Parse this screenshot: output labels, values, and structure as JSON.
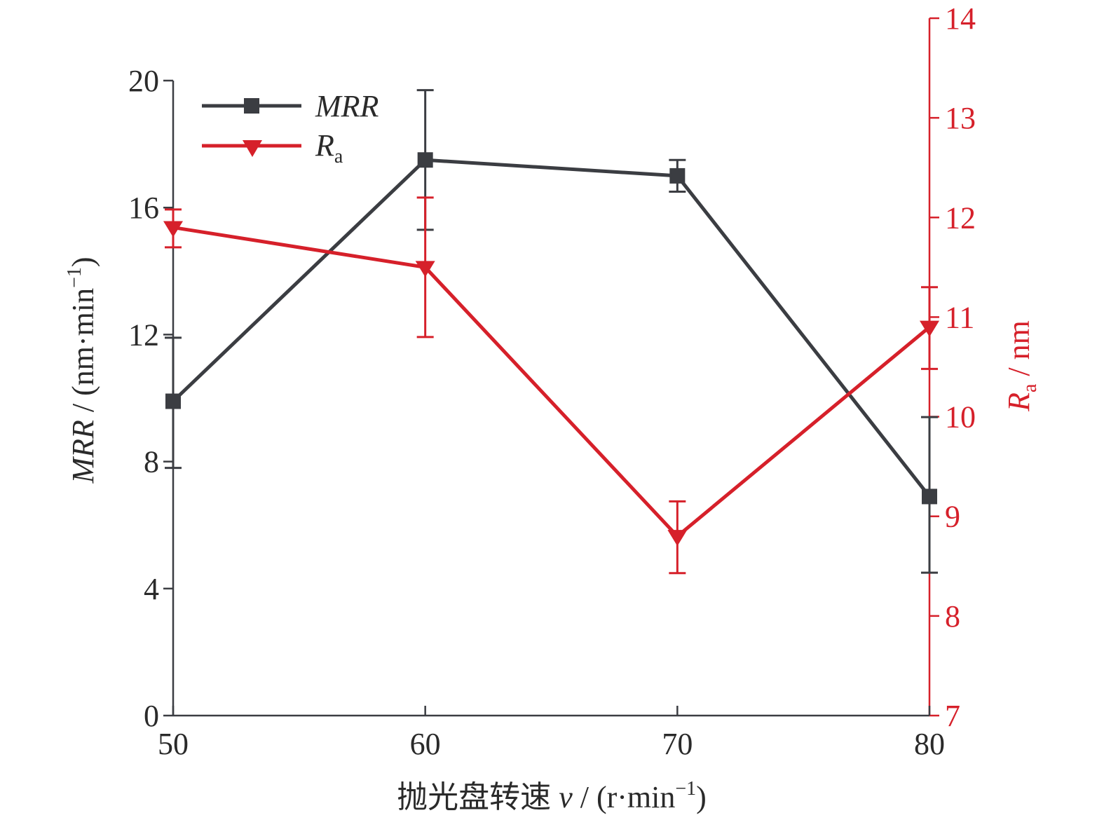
{
  "colors": {
    "mrr": "#3b3d42",
    "ra": "#d6202a",
    "axis": "#3b3d42",
    "text": "#2a2a2a"
  },
  "chart_data": {
    "type": "line",
    "x": [
      50,
      60,
      70,
      80
    ],
    "x_ticks": [
      50,
      60,
      70,
      80
    ],
    "xlim": [
      50,
      80
    ],
    "y_left": {
      "lim": [
        0,
        20
      ],
      "ticks": [
        0,
        4,
        8,
        12,
        16,
        20
      ],
      "label_italic": "MRR",
      "label_rest": " / (nm·min",
      "label_sup": "−1",
      "label_end": ")"
    },
    "y_right": {
      "lim": [
        7,
        14
      ],
      "ticks": [
        7,
        8,
        9,
        10,
        11,
        12,
        13,
        14
      ],
      "label_italic": "R",
      "label_sub": "a",
      "label_rest": " / nm"
    },
    "x_label": {
      "prefix": "抛光盘转速 ",
      "italic": "v",
      "rest": " / (r·min",
      "sup": "−1",
      "end": ")"
    },
    "series": [
      {
        "name": "MRR",
        "axis": "left",
        "marker": "square",
        "values": [
          9.9,
          17.5,
          17.0,
          6.9
        ],
        "err_low": [
          7.8,
          15.3,
          16.5,
          4.5
        ],
        "err_high": [
          11.9,
          19.7,
          17.5,
          9.4
        ]
      },
      {
        "name": "R",
        "name_sub": "a",
        "axis": "right",
        "marker": "triangle-down",
        "values": [
          11.9,
          11.5,
          8.8,
          10.9
        ],
        "err_low": [
          11.7,
          10.8,
          8.43,
          10.48
        ],
        "err_high": [
          12.08,
          12.2,
          9.15,
          11.3
        ]
      }
    ],
    "legend_position": "top-left"
  }
}
